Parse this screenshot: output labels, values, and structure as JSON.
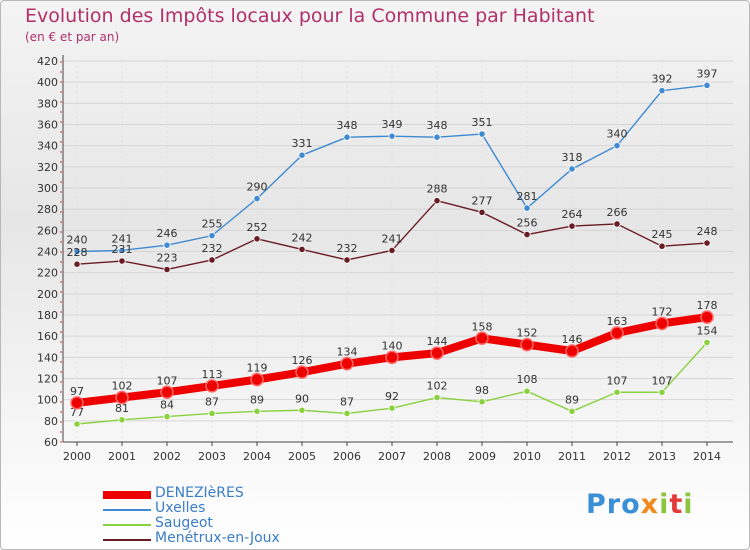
{
  "header": {
    "title": "Evolution des Impôts locaux pour la Commune par Habitant",
    "subtitle": "(en € et par an)"
  },
  "logo": {
    "text": "Proxiti"
  },
  "chart_data": {
    "type": "line",
    "title": "Evolution des Impôts locaux pour la Commune par Habitant",
    "subtitle": "(en € et par an)",
    "x": [
      "2000",
      "2001",
      "2002",
      "2003",
      "2004",
      "2005",
      "2006",
      "2007",
      "2008",
      "2009",
      "2010",
      "2011",
      "2012",
      "2013",
      "2014"
    ],
    "ylim": [
      60,
      420
    ],
    "yticks": [
      60,
      80,
      100,
      120,
      140,
      160,
      180,
      200,
      220,
      240,
      260,
      280,
      300,
      320,
      340,
      360,
      380,
      400,
      420
    ],
    "grid": true,
    "legend_position": "bottom-left",
    "series": [
      {
        "name": "DENEZIèRES",
        "color": "#ee0000",
        "values": [
          97,
          102,
          107,
          113,
          119,
          126,
          134,
          140,
          144,
          158,
          152,
          146,
          163,
          172,
          178
        ]
      },
      {
        "name": "Uxelles",
        "color": "#3f8ad1",
        "values": [
          240,
          241,
          246,
          255,
          290,
          331,
          348,
          349,
          348,
          351,
          281,
          318,
          340,
          392,
          397
        ]
      },
      {
        "name": "Saugeot",
        "color": "#8ad13f",
        "values": [
          77,
          81,
          84,
          87,
          89,
          90,
          87,
          92,
          102,
          98,
          108,
          89,
          107,
          107,
          154
        ]
      },
      {
        "name": "Menétrux-en-Joux",
        "color": "#6a1c24",
        "values": [
          228,
          231,
          223,
          232,
          252,
          242,
          232,
          241,
          288,
          277,
          256,
          264,
          266,
          245,
          248
        ]
      }
    ]
  }
}
